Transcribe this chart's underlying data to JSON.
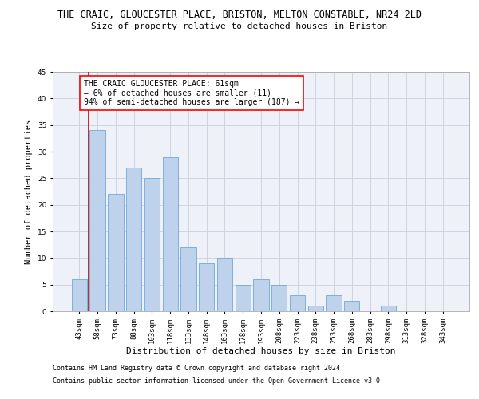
{
  "title": "THE CRAIC, GLOUCESTER PLACE, BRISTON, MELTON CONSTABLE, NR24 2LD",
  "subtitle": "Size of property relative to detached houses in Briston",
  "xlabel": "Distribution of detached houses by size in Briston",
  "ylabel": "Number of detached properties",
  "bar_color": "#bed3eb",
  "bar_edge_color": "#6fa8d8",
  "categories": [
    "43sqm",
    "58sqm",
    "73sqm",
    "88sqm",
    "103sqm",
    "118sqm",
    "133sqm",
    "148sqm",
    "163sqm",
    "178sqm",
    "193sqm",
    "208sqm",
    "223sqm",
    "238sqm",
    "253sqm",
    "268sqm",
    "283sqm",
    "298sqm",
    "313sqm",
    "328sqm",
    "343sqm"
  ],
  "values": [
    6,
    34,
    22,
    27,
    25,
    29,
    12,
    9,
    10,
    5,
    6,
    5,
    3,
    1,
    3,
    2,
    0,
    1,
    0,
    0,
    0
  ],
  "ylim": [
    0,
    45
  ],
  "yticks": [
    0,
    5,
    10,
    15,
    20,
    25,
    30,
    35,
    40,
    45
  ],
  "vline_x": 0.5,
  "vline_color": "#cc0000",
  "annotation_text": "THE CRAIC GLOUCESTER PLACE: 61sqm\n← 6% of detached houses are smaller (11)\n94% of semi-detached houses are larger (187) →",
  "footer_line1": "Contains HM Land Registry data © Crown copyright and database right 2024.",
  "footer_line2": "Contains public sector information licensed under the Open Government Licence v3.0.",
  "background_color": "#eef2f8",
  "grid_color": "#c8d0dc",
  "title_fontsize": 8.5,
  "subtitle_fontsize": 8,
  "ylabel_fontsize": 7.5,
  "xlabel_fontsize": 8,
  "tick_fontsize": 6.5,
  "annotation_fontsize": 7,
  "footer_fontsize": 6
}
